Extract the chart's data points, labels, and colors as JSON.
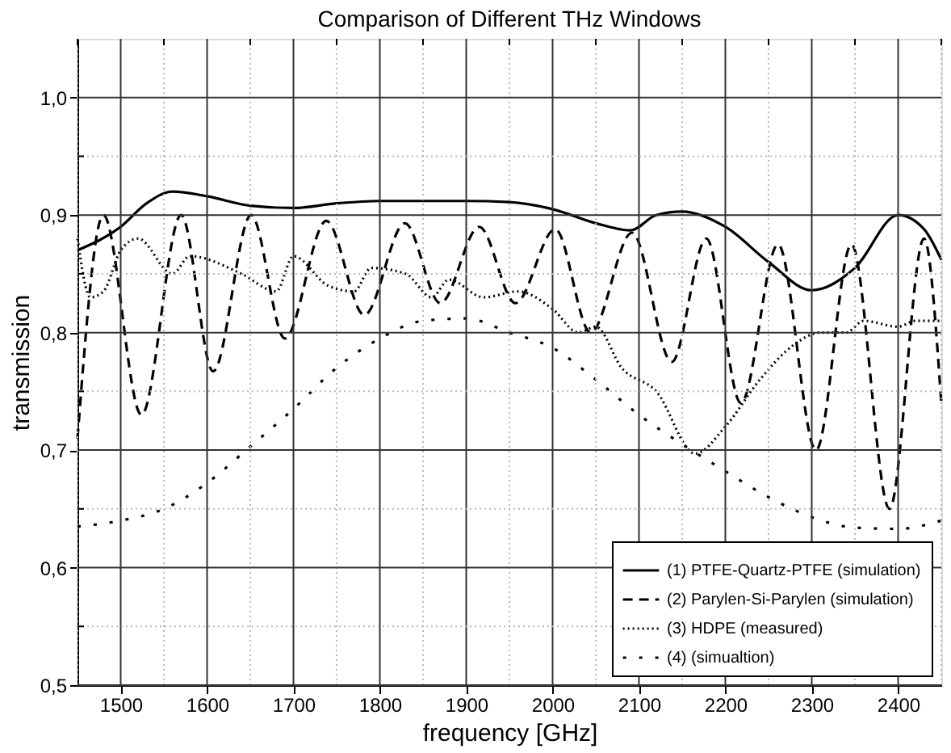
{
  "chart_data": {
    "type": "line",
    "title": "Comparison of Different THz Windows",
    "xlabel": "frequency [GHz]",
    "ylabel": "transmission",
    "xlim": [
      1450,
      2450
    ],
    "xticks": [
      {
        "value": 1450,
        "label": null
      },
      1500,
      {
        "value": 1550,
        "label": null
      },
      1600,
      {
        "value": 1650,
        "label": null
      },
      1700,
      {
        "value": 1750,
        "label": null
      },
      1800,
      {
        "value": 1850,
        "label": null
      },
      1900,
      {
        "value": 1950,
        "label": null
      },
      2000,
      {
        "value": 2050,
        "label": null
      },
      2100,
      {
        "value": 2150,
        "label": null
      },
      2200,
      {
        "value": 2250,
        "label": null
      },
      2300,
      {
        "value": 2350,
        "label": null
      },
      2400,
      {
        "value": 2450,
        "label": null
      }
    ],
    "ylim": [
      0.5,
      1.05
    ],
    "yticks": [
      {
        "value": 0.5,
        "label": "0,5"
      },
      {
        "value": 0.55,
        "label": null
      },
      {
        "value": 0.6,
        "label": "0,6"
      },
      {
        "value": 0.65,
        "label": null
      },
      {
        "value": 0.7,
        "label": "0,7"
      },
      {
        "value": 0.75,
        "label": null
      },
      {
        "value": 0.8,
        "label": "0,8"
      },
      {
        "value": 0.85,
        "label": null
      },
      {
        "value": 0.9,
        "label": "0,9"
      },
      {
        "value": 0.95,
        "label": null
      },
      {
        "value": 1.0,
        "label": "1,0"
      }
    ],
    "grid": true,
    "legend": "bottom right",
    "series": [
      {
        "name": "(1) PTFE-Quartz-PTFE (simulation)",
        "color": "#000000",
        "line_style": "solid",
        "x": [
          1450,
          1500,
          1530,
          1560,
          1600,
          1650,
          1700,
          1750,
          1800,
          1850,
          1900,
          1950,
          2000,
          2050,
          2090,
          2120,
          2150,
          2200,
          2250,
          2300,
          2350,
          2400,
          2430,
          2450
        ],
        "values": [
          0.87,
          0.89,
          0.91,
          0.92,
          0.916,
          0.908,
          0.906,
          0.91,
          0.912,
          0.912,
          0.912,
          0.911,
          0.905,
          0.893,
          0.887,
          0.9,
          0.903,
          0.89,
          0.86,
          0.836,
          0.855,
          0.9,
          0.888,
          0.862
        ]
      },
      {
        "name": "(2) Parylen-Si-Parylen (simulation)",
        "color": "#000000",
        "line_style": "dashed",
        "x": [
          1450,
          1480,
          1524,
          1570,
          1607,
          1651,
          1690,
          1738,
          1782,
          1829,
          1870,
          1915,
          1957,
          2003,
          2044,
          2092,
          2138,
          2178,
          2218,
          2261,
          2305,
          2346,
          2390,
          2430,
          2450
        ],
        "values": [
          0.71,
          0.9,
          0.73,
          0.9,
          0.767,
          0.9,
          0.795,
          0.895,
          0.815,
          0.893,
          0.825,
          0.89,
          0.825,
          0.888,
          0.8,
          0.885,
          0.775,
          0.88,
          0.74,
          0.875,
          0.7,
          0.875,
          0.65,
          0.88,
          0.74
        ]
      },
      {
        "name": "(3) HDPE (measured)",
        "color": "#000000",
        "line_style": "dotted",
        "x": [
          1450,
          1465,
          1480,
          1500,
          1520,
          1560,
          1580,
          1640,
          1680,
          1700,
          1740,
          1770,
          1790,
          1830,
          1860,
          1880,
          1920,
          1960,
          2000,
          2030,
          2050,
          2080,
          2120,
          2165,
          2200,
          2240,
          2280,
          2310,
          2340,
          2360,
          2400,
          2420,
          2450
        ],
        "values": [
          0.88,
          0.83,
          0.835,
          0.87,
          0.88,
          0.85,
          0.865,
          0.85,
          0.835,
          0.865,
          0.84,
          0.835,
          0.855,
          0.85,
          0.83,
          0.845,
          0.83,
          0.835,
          0.82,
          0.8,
          0.805,
          0.77,
          0.75,
          0.697,
          0.72,
          0.76,
          0.79,
          0.8,
          0.8,
          0.81,
          0.805,
          0.81,
          0.81
        ]
      },
      {
        "name": "(4) (simualtion)",
        "color": "#000000",
        "line_style": "sparse",
        "x": [
          1450,
          1500,
          1550,
          1600,
          1650,
          1700,
          1750,
          1800,
          1850,
          1900,
          1950,
          2000,
          2050,
          2100,
          2150,
          2200,
          2250,
          2300,
          2350,
          2400,
          2450
        ],
        "values": [
          0.635,
          0.64,
          0.65,
          0.672,
          0.703,
          0.735,
          0.77,
          0.795,
          0.81,
          0.812,
          0.8,
          0.787,
          0.76,
          0.73,
          0.705,
          0.682,
          0.66,
          0.643,
          0.634,
          0.633,
          0.64
        ]
      }
    ]
  }
}
